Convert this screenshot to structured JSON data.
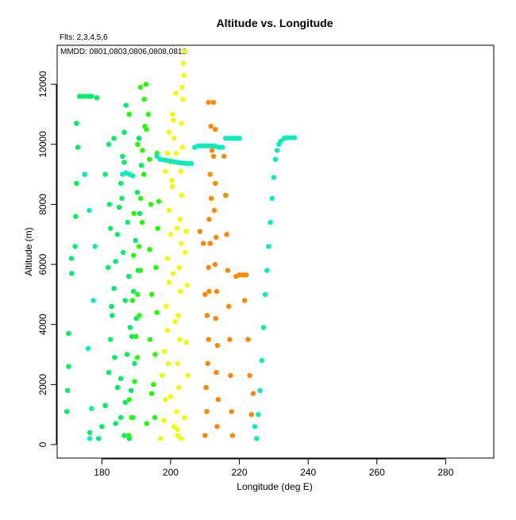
{
  "chart_data": {
    "type": "scatter",
    "title": "Altitude vs. Longitude",
    "subtitle": "Flts: 2,3,4,5,6",
    "annotation": "MMDD: 0801,0803,0806,0808,0812",
    "xlabel": "Longitude (deg E)",
    "ylabel": "Altitude (m)",
    "xlim": [
      167,
      294
    ],
    "ylim": [
      -450,
      13300
    ],
    "xticks": [
      180,
      200,
      220,
      240,
      260,
      280
    ],
    "yticks": [
      0,
      2000,
      4000,
      6000,
      8000,
      10000,
      12000
    ],
    "grid": false,
    "series": [
      {
        "color": "#00ee66",
        "points": [
          [
            169.8,
            1100
          ],
          [
            170.0,
            1800
          ],
          [
            170.3,
            2600
          ],
          [
            170.3,
            3700
          ],
          [
            171.2,
            5700
          ],
          [
            171.1,
            6200
          ],
          [
            172.2,
            6600
          ],
          [
            172.4,
            7600
          ],
          [
            172.6,
            8700
          ],
          [
            173.0,
            9900
          ],
          [
            173.5,
            11600
          ],
          [
            174.0,
            11600
          ],
          [
            175.0,
            11600
          ],
          [
            176.0,
            11600
          ],
          [
            177.0,
            11600
          ],
          [
            178.5,
            11550
          ],
          [
            172.6,
            10700
          ],
          [
            175.0,
            9000
          ],
          [
            176.5,
            400
          ],
          [
            179.0,
            200
          ],
          [
            180.0,
            600
          ],
          [
            181.0,
            1300
          ],
          [
            182.0,
            2400
          ],
          [
            182.5,
            3500
          ],
          [
            183.0,
            4300
          ],
          [
            183.5,
            5200
          ],
          [
            184.0,
            6100
          ],
          [
            184.5,
            7000
          ],
          [
            185.0,
            7900
          ],
          [
            185.5,
            8700
          ],
          [
            186.0,
            9600
          ],
          [
            186.5,
            10400
          ],
          [
            187.0,
            11300
          ],
          [
            181.0,
            9000
          ],
          [
            182.2,
            8000
          ],
          [
            182.0,
            10000
          ],
          [
            183.5,
            10200
          ],
          [
            182.5,
            7200
          ],
          [
            181.8,
            5900
          ],
          [
            182.8,
            4600
          ],
          [
            183.7,
            2900
          ],
          [
            184.5,
            1900
          ],
          [
            185.5,
            900
          ],
          [
            186.5,
            300
          ],
          [
            188.0,
            200
          ],
          [
            189.0,
            900
          ],
          [
            188.5,
            1800
          ],
          [
            189.5,
            2700
          ],
          [
            188.7,
            3600
          ],
          [
            190.0,
            4200
          ],
          [
            189.2,
            5100
          ],
          [
            190.5,
            5800
          ],
          [
            189.8,
            6800
          ],
          [
            191.0,
            7700
          ],
          [
            190.3,
            8400
          ],
          [
            191.5,
            9300
          ],
          [
            190.8,
            10200
          ],
          [
            186.5,
            9400
          ],
          [
            185.8,
            8200
          ],
          [
            187.5,
            7400
          ],
          [
            186.2,
            6400
          ],
          [
            187.8,
            5600
          ],
          [
            186.8,
            4800
          ],
          [
            188.2,
            3900
          ],
          [
            187.3,
            3000
          ],
          [
            185.5,
            2200
          ],
          [
            186.8,
            1400
          ],
          [
            184.0,
            700
          ]
        ]
      },
      {
        "color": "#22ff00",
        "points": [
          [
            187.8,
            300
          ],
          [
            188.6,
            900
          ],
          [
            188.0,
            1500
          ],
          [
            189.5,
            2100
          ],
          [
            190.3,
            2900
          ],
          [
            189.9,
            3600
          ],
          [
            190.9,
            4300
          ],
          [
            190.4,
            5000
          ],
          [
            191.2,
            5800
          ],
          [
            190.8,
            6600
          ],
          [
            191.7,
            7400
          ],
          [
            191.3,
            8200
          ],
          [
            192.2,
            9000
          ],
          [
            191.8,
            9800
          ],
          [
            192.5,
            10600
          ],
          [
            192.3,
            11500
          ],
          [
            191.2,
            11900
          ],
          [
            192.8,
            12000
          ],
          [
            193.5,
            11000
          ],
          [
            193.8,
            9500
          ],
          [
            194.2,
            8000
          ],
          [
            193.9,
            6500
          ],
          [
            194.5,
            5000
          ],
          [
            194.0,
            3500
          ],
          [
            195.0,
            2000
          ],
          [
            195.4,
            900
          ],
          [
            193.0,
            700
          ],
          [
            194.5,
            1700
          ],
          [
            195.5,
            3000
          ],
          [
            196.0,
            4400
          ],
          [
            195.7,
            5900
          ],
          [
            196.2,
            7200
          ],
          [
            196.5,
            8100
          ],
          [
            196.0,
            9700
          ],
          [
            192.9,
            10500
          ],
          [
            188.9,
            4800
          ],
          [
            189.3,
            7700
          ],
          [
            190.4,
            10000
          ],
          [
            187.9,
            11000
          ],
          [
            189.2,
            6300
          ]
        ]
      },
      {
        "color": "#eeff00",
        "points": [
          [
            197.0,
            200
          ],
          [
            198.0,
            800
          ],
          [
            198.5,
            1500
          ],
          [
            197.5,
            2300
          ],
          [
            198.2,
            3100
          ],
          [
            199.0,
            3800
          ],
          [
            198.7,
            4600
          ],
          [
            199.5,
            5400
          ],
          [
            199.0,
            6200
          ],
          [
            200.0,
            7000
          ],
          [
            199.5,
            7800
          ],
          [
            200.5,
            8600
          ],
          [
            200.0,
            9400
          ],
          [
            201.0,
            10200
          ],
          [
            200.5,
            11000
          ],
          [
            201.5,
            11700
          ],
          [
            202.0,
            300
          ],
          [
            201.7,
            1100
          ],
          [
            202.3,
            1900
          ],
          [
            202.0,
            2700
          ],
          [
            202.6,
            3500
          ],
          [
            202.2,
            4300
          ],
          [
            202.8,
            5100
          ],
          [
            202.5,
            5900
          ],
          [
            203.0,
            6700
          ],
          [
            202.7,
            7500
          ],
          [
            203.2,
            8300
          ],
          [
            202.9,
            9100
          ],
          [
            203.4,
            9900
          ],
          [
            203.1,
            10700
          ],
          [
            203.5,
            11500
          ],
          [
            203.8,
            12300
          ],
          [
            204.0,
            13100
          ],
          [
            203.7,
            12700
          ],
          [
            203.3,
            11900
          ],
          [
            201.0,
            600
          ],
          [
            200.0,
            1600
          ],
          [
            199.3,
            2700
          ],
          [
            201.3,
            4100
          ],
          [
            200.7,
            5700
          ],
          [
            201.8,
            7200
          ],
          [
            200.3,
            8800
          ],
          [
            201.6,
            9700
          ],
          [
            199.0,
            9700
          ],
          [
            199.5,
            10400
          ],
          [
            200.8,
            10800
          ],
          [
            198.5,
            9100
          ],
          [
            203.0,
            200
          ],
          [
            202.0,
            500
          ],
          [
            204.0,
            900
          ],
          [
            204.5,
            7100
          ],
          [
            204.2,
            6400
          ],
          [
            204.6,
            3400
          ],
          [
            205.0,
            2300
          ],
          [
            204.8,
            5300
          ]
        ]
      },
      {
        "color": "#ff8800",
        "points": [
          [
            210.0,
            300
          ],
          [
            210.5,
            1100
          ],
          [
            210.3,
            1900
          ],
          [
            210.8,
            2700
          ],
          [
            211.0,
            3500
          ],
          [
            210.6,
            4300
          ],
          [
            211.2,
            5100
          ],
          [
            211.0,
            5900
          ],
          [
            211.5,
            6700
          ],
          [
            211.2,
            7500
          ],
          [
            211.8,
            8200
          ],
          [
            211.5,
            9000
          ],
          [
            212.0,
            9800
          ],
          [
            211.7,
            10600
          ],
          [
            211.0,
            11400
          ],
          [
            212.5,
            11400
          ],
          [
            213.0,
            10500
          ],
          [
            212.5,
            9600
          ],
          [
            213.0,
            8700
          ],
          [
            212.7,
            7800
          ],
          [
            213.2,
            6900
          ],
          [
            212.9,
            6000
          ],
          [
            213.4,
            5100
          ],
          [
            213.1,
            4200
          ],
          [
            213.6,
            3300
          ],
          [
            213.3,
            2400
          ],
          [
            213.8,
            1500
          ],
          [
            213.5,
            600
          ],
          [
            215.5,
            9600
          ],
          [
            216.0,
            8300
          ],
          [
            216.3,
            7000
          ],
          [
            216.6,
            5800
          ],
          [
            216.9,
            4600
          ],
          [
            217.2,
            3500
          ],
          [
            217.4,
            2300
          ],
          [
            217.7,
            1100
          ],
          [
            218.0,
            300
          ],
          [
            219.0,
            5600
          ],
          [
            220.0,
            5650
          ],
          [
            221.0,
            5650
          ],
          [
            222.0,
            5650
          ],
          [
            221.5,
            4800
          ],
          [
            222.5,
            3500
          ],
          [
            223.0,
            2300
          ],
          [
            223.5,
            1000
          ],
          [
            224.0,
            1700
          ],
          [
            208.5,
            7100
          ],
          [
            209.5,
            6700
          ],
          [
            210.0,
            5000
          ]
        ]
      },
      {
        "color": "#00eebb",
        "points": [
          [
            176.5,
            200
          ],
          [
            177.0,
            1200
          ],
          [
            176.0,
            3200
          ],
          [
            177.5,
            4800
          ],
          [
            178.0,
            6600
          ],
          [
            176.3,
            7800
          ],
          [
            175.0,
            9000
          ],
          [
            196.0,
            9600
          ],
          [
            197.0,
            9500
          ],
          [
            198.0,
            9480
          ],
          [
            199.0,
            9460
          ],
          [
            200.0,
            9440
          ],
          [
            201.0,
            9420
          ],
          [
            202.0,
            9400
          ],
          [
            203.0,
            9380
          ],
          [
            204.0,
            9370
          ],
          [
            205.0,
            9360
          ],
          [
            206.0,
            9360
          ],
          [
            207.0,
            9900
          ],
          [
            208.0,
            9950
          ],
          [
            209.0,
            9950
          ],
          [
            210.0,
            9950
          ],
          [
            211.0,
            9950
          ],
          [
            212.0,
            9950
          ],
          [
            213.0,
            9930
          ],
          [
            214.0,
            9900
          ],
          [
            215.0,
            9900
          ],
          [
            216.0,
            10200
          ],
          [
            217.0,
            10200
          ],
          [
            218.0,
            10200
          ],
          [
            219.0,
            10200
          ],
          [
            220.0,
            10200
          ],
          [
            225.0,
            200
          ],
          [
            224.5,
            600
          ],
          [
            225.5,
            1000
          ],
          [
            226.0,
            1800
          ],
          [
            226.5,
            2800
          ],
          [
            227.0,
            3900
          ],
          [
            227.5,
            5000
          ],
          [
            228.0,
            5800
          ],
          [
            228.5,
            6600
          ],
          [
            229.0,
            7400
          ],
          [
            229.5,
            8200
          ],
          [
            230.0,
            8900
          ],
          [
            230.5,
            9500
          ],
          [
            231.0,
            9800
          ],
          [
            231.5,
            10000
          ],
          [
            232.0,
            10100
          ],
          [
            233.0,
            10200
          ],
          [
            234.0,
            10220
          ],
          [
            235.0,
            10220
          ],
          [
            236.0,
            10220
          ],
          [
            186.0,
            9000
          ],
          [
            187.0,
            9050
          ],
          [
            188.0,
            9000
          ],
          [
            189.0,
            8950
          ]
        ]
      }
    ]
  }
}
